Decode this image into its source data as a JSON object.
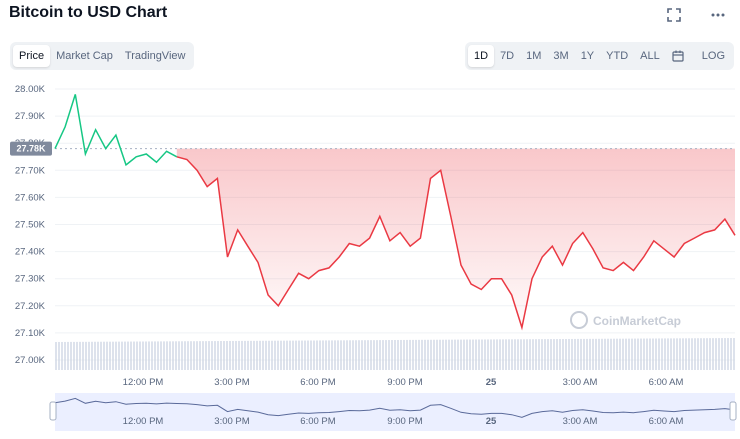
{
  "header": {
    "title": "Bitcoin to USD Chart"
  },
  "top_icons": [
    "fullscreen-icon",
    "more-icon"
  ],
  "view_tabs": [
    {
      "label": "Price",
      "active": true
    },
    {
      "label": "Market Cap",
      "active": false
    },
    {
      "label": "TradingView",
      "active": false
    }
  ],
  "range_tabs": [
    {
      "label": "1D",
      "active": true
    },
    {
      "label": "7D",
      "active": false
    },
    {
      "label": "1M",
      "active": false
    },
    {
      "label": "3M",
      "active": false
    },
    {
      "label": "1Y",
      "active": false
    },
    {
      "label": "YTD",
      "active": false
    },
    {
      "label": "ALL",
      "active": false
    }
  ],
  "calendar_icon": "calendar-icon",
  "log_label": "LOG",
  "current_price_badge": "27.78K",
  "watermark": "CoinMarketCap",
  "colors": {
    "up": "#16c784",
    "down": "#ea3943",
    "badge": "#808a9d",
    "volume": "#cfd6e4",
    "navigator": "#dde4ff"
  },
  "chart_data": {
    "type": "line",
    "title": "",
    "xlabel": "",
    "ylabel": "",
    "ylim": [
      27000,
      28000
    ],
    "yticks": [
      "28.00K",
      "27.90K",
      "27.80K",
      "27.70K",
      "27.60K",
      "27.50K",
      "27.40K",
      "27.30K",
      "27.20K",
      "27.10K",
      "27.00K"
    ],
    "xticks": [
      "12:00 PM",
      "3:00 PM",
      "6:00 PM",
      "9:00 PM",
      "25",
      "3:00 AM",
      "6:00 AM"
    ],
    "reference_price": 27780,
    "x": [
      "10:40 AM",
      "10:50 AM",
      "11:00 AM",
      "11:10 AM",
      "11:20 AM",
      "11:30 AM",
      "11:40 AM",
      "11:50 AM",
      "12:00 PM",
      "12:20 PM",
      "12:40 PM",
      "1:00 PM",
      "1:20 PM",
      "1:40 PM",
      "2:00 PM",
      "2:20 PM",
      "2:40 PM",
      "3:00 PM",
      "3:20 PM",
      "3:40 PM",
      "4:00 PM",
      "4:20 PM",
      "4:40 PM",
      "5:00 PM",
      "5:20 PM",
      "5:40 PM",
      "6:00 PM",
      "6:20 PM",
      "6:40 PM",
      "7:00 PM",
      "7:20 PM",
      "7:40 PM",
      "8:00 PM",
      "8:20 PM",
      "8:40 PM",
      "9:00 PM",
      "9:20 PM",
      "9:40 PM",
      "10:00 PM",
      "10:20 PM",
      "10:40 PM",
      "11:00 PM",
      "11:20 PM",
      "11:40 PM",
      "12:00 AM",
      "12:20 AM",
      "12:40 AM",
      "1:00 AM",
      "1:20 AM",
      "1:40 AM",
      "2:00 AM",
      "2:20 AM",
      "2:40 AM",
      "3:00 AM",
      "3:20 AM",
      "3:40 AM",
      "4:00 AM",
      "4:20 AM",
      "4:40 AM",
      "5:00 AM",
      "5:20 AM",
      "5:40 AM",
      "6:00 AM",
      "6:20 AM",
      "6:40 AM",
      "7:00 AM",
      "7:20 AM",
      "7:40 AM"
    ],
    "values": [
      27780,
      27860,
      27980,
      27760,
      27850,
      27780,
      27830,
      27720,
      27750,
      27760,
      27730,
      27770,
      27750,
      27740,
      27700,
      27640,
      27670,
      27380,
      27480,
      27420,
      27360,
      27240,
      27200,
      27260,
      27320,
      27300,
      27330,
      27340,
      27380,
      27430,
      27420,
      27450,
      27530,
      27440,
      27470,
      27420,
      27450,
      27670,
      27700,
      27530,
      27350,
      27280,
      27260,
      27300,
      27300,
      27240,
      27120,
      27300,
      27380,
      27420,
      27350,
      27430,
      27470,
      27410,
      27340,
      27330,
      27360,
      27330,
      27380,
      27440,
      27410,
      27380,
      27430,
      27450,
      27470,
      27480,
      27520,
      27460
    ],
    "volume_note": "volume bars rendered as uniform light bars"
  }
}
